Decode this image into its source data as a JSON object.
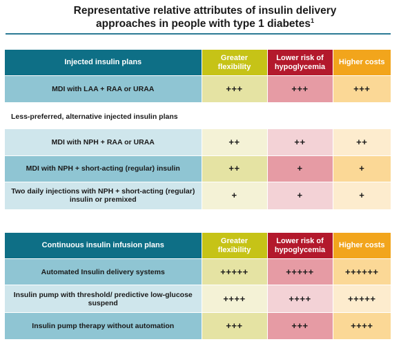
{
  "title": {
    "line1": "Representative relative attributes of insulin delivery",
    "line2": "approaches in people with type 1 diabetes",
    "footnote": "1"
  },
  "columns": {
    "flexibility": "Greater flexibility",
    "hypoglycemia": "Lower risk of hypoglycemia",
    "costs": "Higher costs"
  },
  "injected": {
    "header": "Injected insulin plans",
    "rows": [
      {
        "label": "MDI with LAA + RAA or URAA",
        "flexibility": "+++",
        "hypoglycemia": "+++",
        "costs": "+++"
      }
    ]
  },
  "alternative": {
    "header": "Less-preferred, alternative injected insulin plans",
    "rows": [
      {
        "label": "MDI with NPH + RAA or URAA",
        "flexibility": "++",
        "hypoglycemia": "++",
        "costs": "++"
      },
      {
        "label": "MDI with NPH + short-acting (regular) insulin",
        "flexibility": "++",
        "hypoglycemia": "+",
        "costs": "+"
      },
      {
        "label": "Two daily injections with NPH + short-acting (regular) insulin or premixed",
        "flexibility": "+",
        "hypoglycemia": "+",
        "costs": "+"
      }
    ]
  },
  "infusion": {
    "header": "Continuous insulin infusion plans",
    "rows": [
      {
        "label": "Automated Insulin delivery systems",
        "flexibility": "+++++",
        "hypoglycemia": "+++++",
        "costs": "++++++"
      },
      {
        "label": "Insulin pump with threshold/ predictive low-glucose suspend",
        "flexibility": "++++",
        "hypoglycemia": "++++",
        "costs": "+++++"
      },
      {
        "label": "Insulin pump therapy without automation",
        "flexibility": "+++",
        "hypoglycemia": "+++",
        "costs": "++++"
      }
    ]
  },
  "colors": {
    "header_teal": "#0e6f86",
    "flexibility_olive": "#c6c317",
    "hypoglycemia_red": "#b3192c",
    "costs_orange": "#f2a51c"
  }
}
